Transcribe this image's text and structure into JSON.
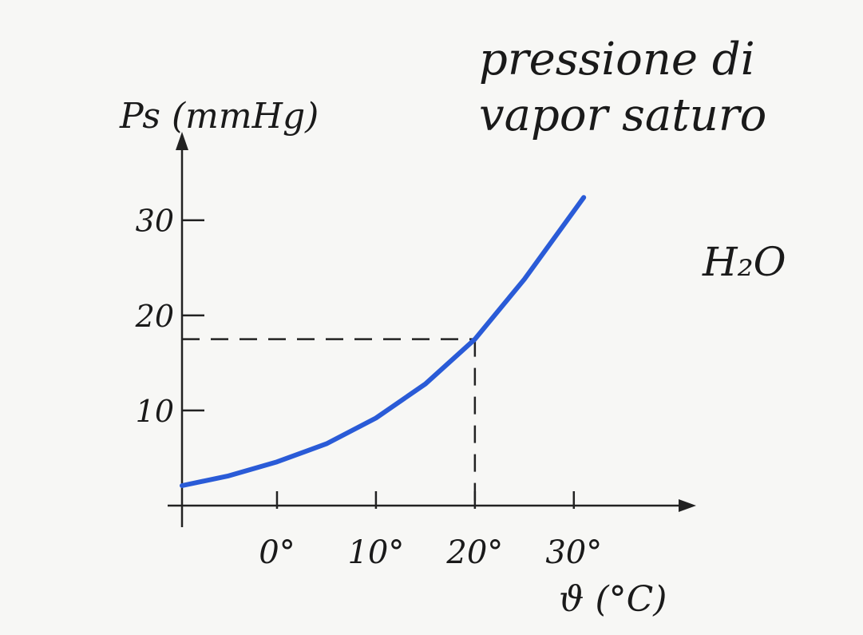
{
  "chart_data": {
    "type": "line",
    "title": "pressione di vapor saturo",
    "y_label": "Ps (mmHg)",
    "x_label": "ϑ (°C)",
    "annotation": "H₂O",
    "annotation_color": "#2a5bd7",
    "series": [
      {
        "name": "H₂O",
        "color": "#2a5bd7",
        "x": [
          -9.6,
          -5,
          0,
          5,
          10,
          15,
          20,
          25,
          31
        ],
        "values": [
          2.1,
          3.1,
          4.6,
          6.5,
          9.2,
          12.8,
          17.5,
          23.8,
          32.4
        ]
      }
    ],
    "xlim": [
      -9.6,
      42.2
    ],
    "ylim": [
      0,
      39.3
    ],
    "xticks": [
      {
        "value": 0,
        "label": "0°"
      },
      {
        "value": 10,
        "label": "10°"
      },
      {
        "value": 20,
        "label": "20°"
      },
      {
        "value": 30,
        "label": "30°"
      }
    ],
    "yticks": [
      10,
      20,
      30
    ],
    "reference_point": {
      "x": 20,
      "y": 17.5
    },
    "grid": false
  }
}
